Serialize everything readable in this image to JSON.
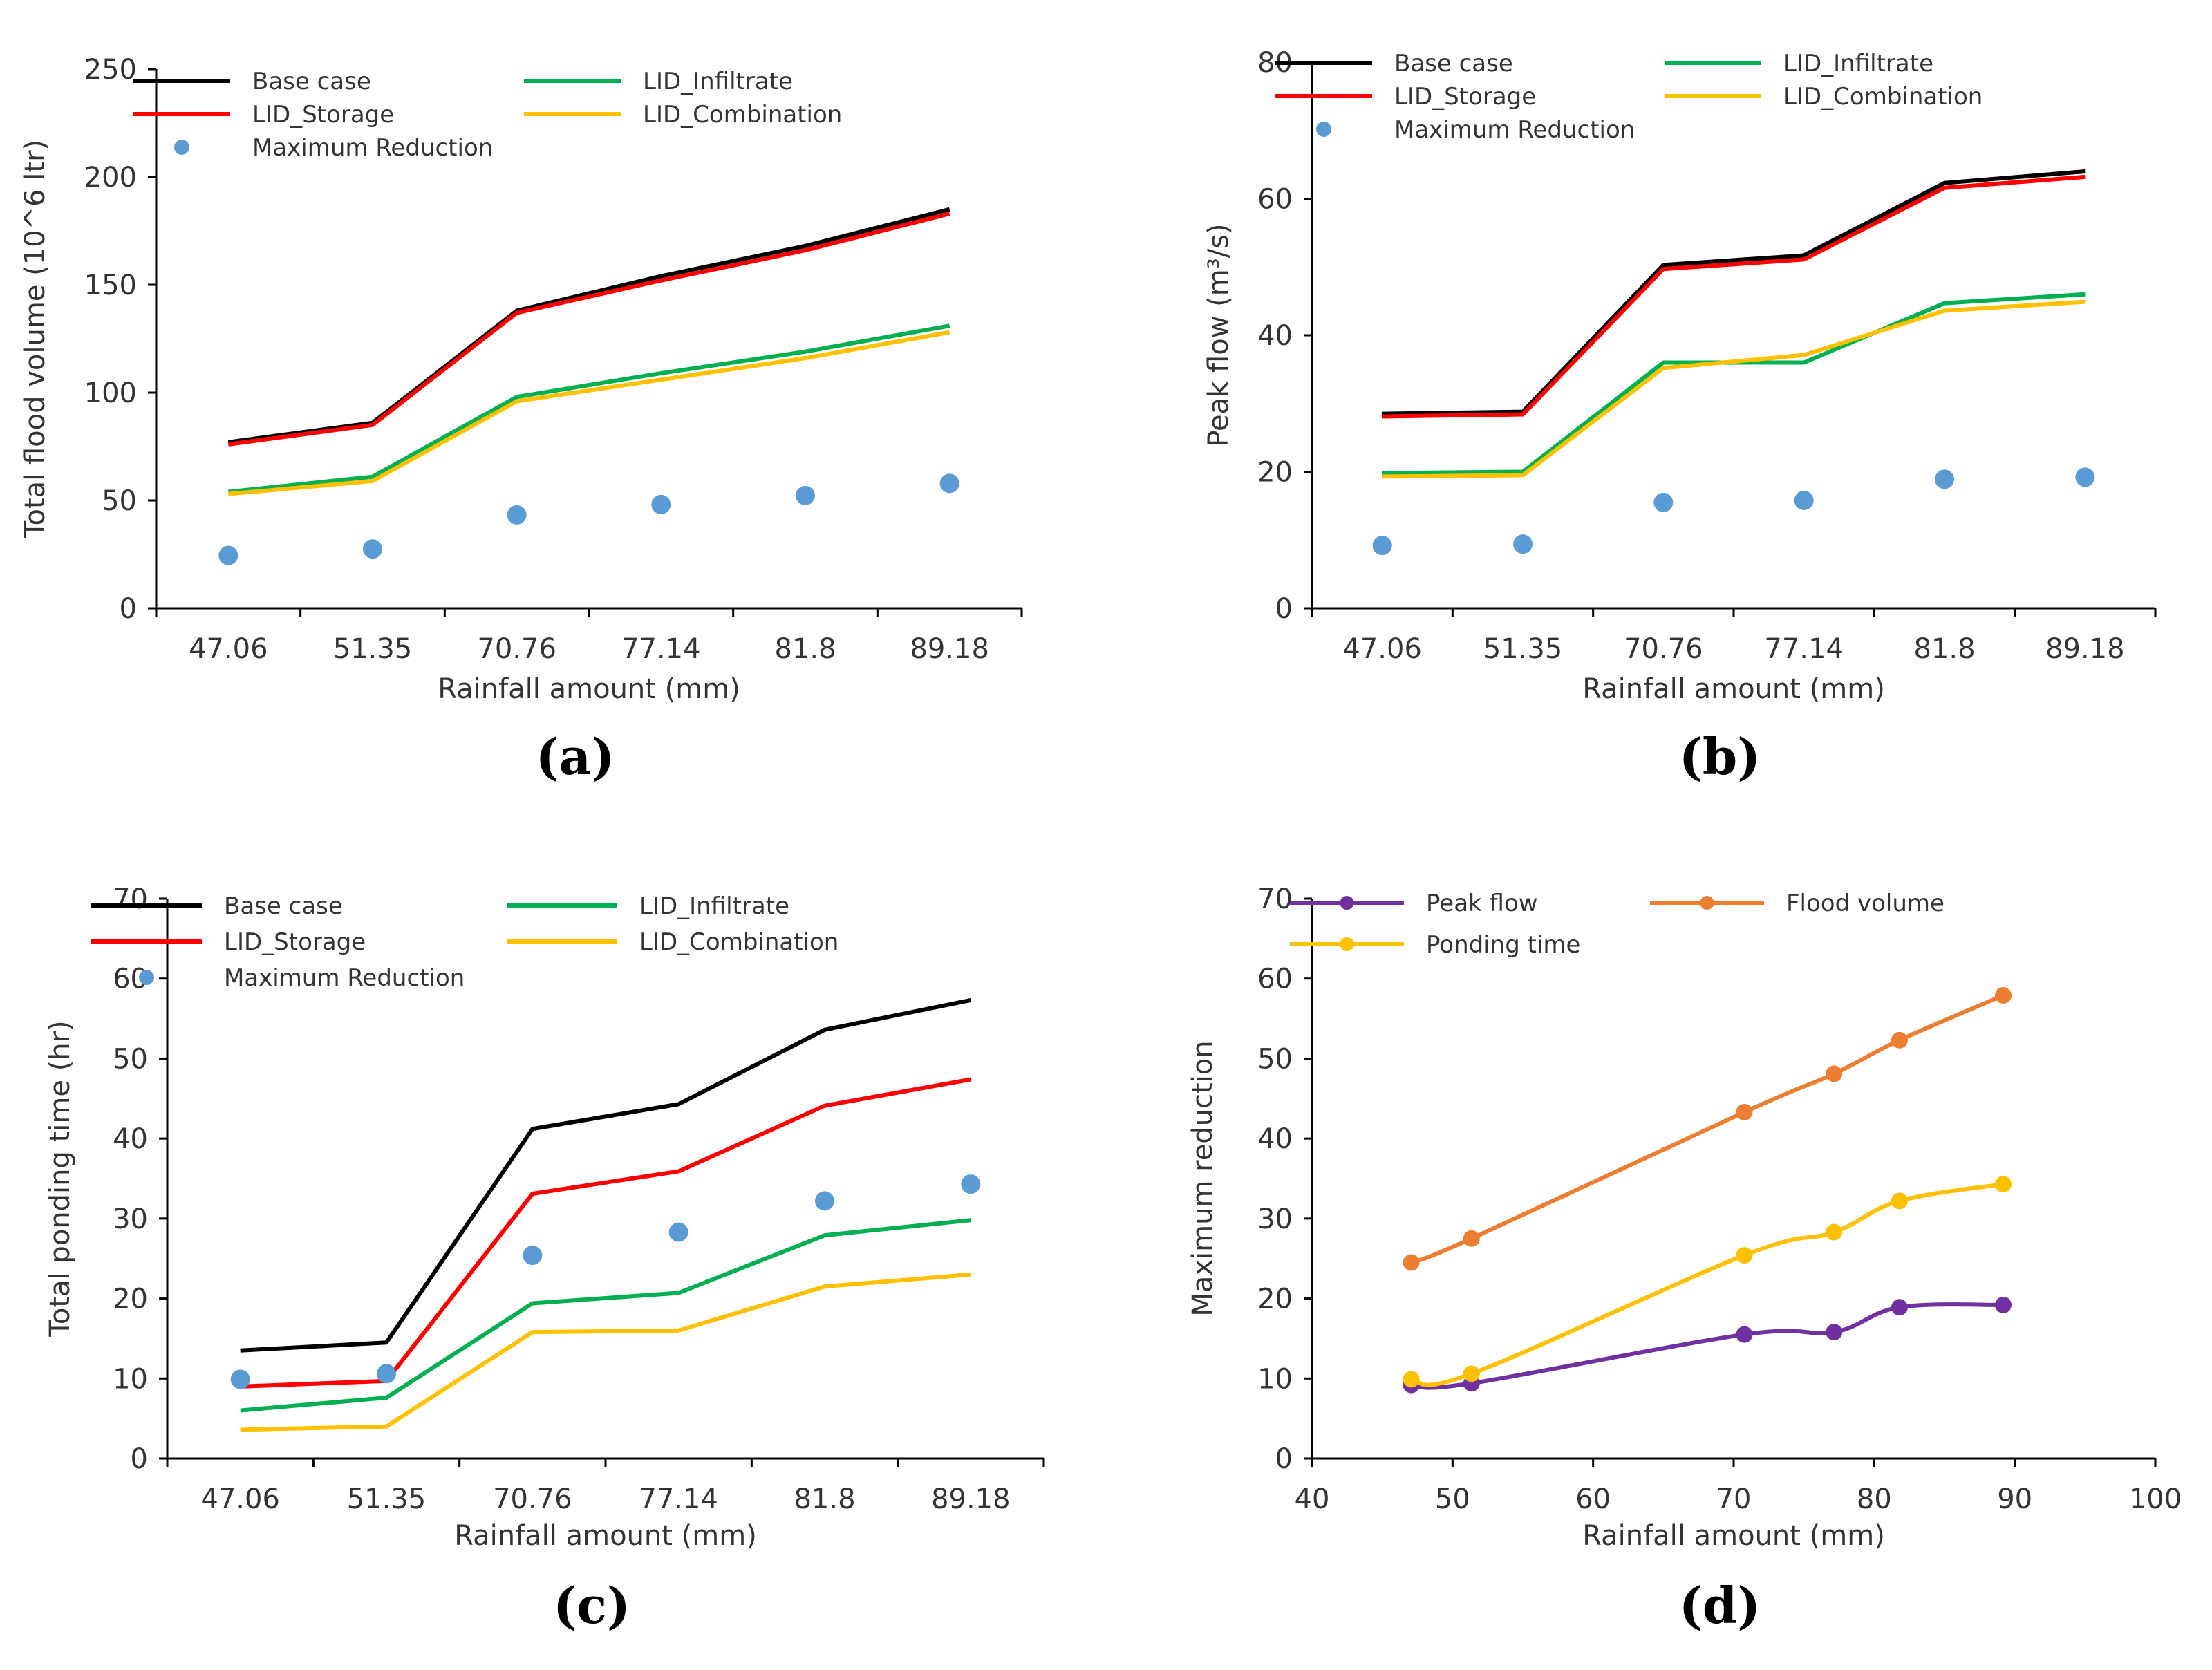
{
  "chart_data": [
    {
      "id": "a",
      "type": "line",
      "panel_label": "(a)",
      "xlabel": "Rainfall amount (mm)",
      "ylabel": "Total flood volume (10^6 ltr)",
      "categories": [
        "47.06",
        "51.35",
        "70.76",
        "77.14",
        "81.8",
        "89.18"
      ],
      "ylim": [
        0,
        250
      ],
      "yticks": [
        0,
        50,
        100,
        150,
        200,
        250
      ],
      "legend": {
        "position": "top",
        "columns": 2
      },
      "series": [
        {
          "name": "Base case",
          "style": "line",
          "color": "#000000",
          "values": [
            77,
            86,
            138,
            154,
            168,
            185
          ]
        },
        {
          "name": "LID_Infiltrate",
          "style": "line",
          "color": "#00B050",
          "values": [
            54,
            61,
            98,
            109,
            119,
            131
          ]
        },
        {
          "name": "LID_Storage",
          "style": "line",
          "color": "#FF0000",
          "values": [
            76,
            85,
            137,
            152,
            166,
            183
          ]
        },
        {
          "name": "LID_Combination",
          "style": "line",
          "color": "#FFC000",
          "values": [
            53,
            59,
            96,
            106,
            116,
            128
          ]
        },
        {
          "name": "Maximum Reduction",
          "style": "marker",
          "color": "#5B9BD5",
          "values": [
            24.5,
            27.5,
            43.3,
            48.1,
            52.3,
            57.9
          ]
        }
      ]
    },
    {
      "id": "b",
      "type": "line",
      "panel_label": "(b)",
      "xlabel": "Rainfall amount (mm)",
      "ylabel": "Peak flow (m³/s)",
      "categories": [
        "47.06",
        "51.35",
        "70.76",
        "77.14",
        "81.8",
        "89.18"
      ],
      "ylim": [
        0,
        80
      ],
      "yticks": [
        0,
        20,
        40,
        60,
        80
      ],
      "legend": {
        "position": "top",
        "columns": 2
      },
      "series": [
        {
          "name": "Base case",
          "style": "line",
          "color": "#000000",
          "values": [
            28.5,
            28.8,
            50.3,
            51.7,
            62.3,
            64
          ]
        },
        {
          "name": "LID_Infiltrate",
          "style": "line",
          "color": "#00B050",
          "values": [
            19.8,
            20,
            36,
            36,
            44.7,
            46
          ]
        },
        {
          "name": "LID_Storage",
          "style": "line",
          "color": "#FF0000",
          "values": [
            28.1,
            28.4,
            49.7,
            51.1,
            61.6,
            63.2
          ]
        },
        {
          "name": "LID_Combination",
          "style": "line",
          "color": "#FFC000",
          "values": [
            19.3,
            19.5,
            35.2,
            37.1,
            43.6,
            44.9
          ]
        },
        {
          "name": "Maximum Reduction",
          "style": "marker",
          "color": "#5B9BD5",
          "values": [
            9.2,
            9.4,
            15.5,
            15.8,
            18.9,
            19.2
          ]
        }
      ]
    },
    {
      "id": "c",
      "type": "line",
      "panel_label": "(c)",
      "xlabel": "Rainfall amount (mm)",
      "ylabel": "Total ponding time (hr)",
      "categories": [
        "47.06",
        "51.35",
        "70.76",
        "77.14",
        "81.8",
        "89.18"
      ],
      "ylim": [
        0,
        70
      ],
      "yticks": [
        0,
        10,
        20,
        30,
        40,
        50,
        60,
        70
      ],
      "legend": {
        "position": "top",
        "columns": 2
      },
      "series": [
        {
          "name": "Base case",
          "style": "line",
          "color": "#000000",
          "values": [
            13.5,
            14.5,
            41.2,
            44.3,
            53.6,
            57.3
          ]
        },
        {
          "name": "LID_Infiltrate",
          "style": "line",
          "color": "#00B050",
          "values": [
            6,
            7.6,
            19.4,
            20.7,
            27.9,
            29.8
          ]
        },
        {
          "name": "LID_Storage",
          "style": "line",
          "color": "#FF0000",
          "values": [
            9,
            9.7,
            33.1,
            35.9,
            44.1,
            47.4
          ]
        },
        {
          "name": "LID_Combination",
          "style": "line",
          "color": "#FFC000",
          "values": [
            3.6,
            4,
            15.8,
            16,
            21.5,
            23
          ]
        },
        {
          "name": "Maximum Reduction",
          "style": "marker",
          "color": "#5B9BD5",
          "values": [
            9.9,
            10.6,
            25.4,
            28.3,
            32.2,
            34.3
          ]
        }
      ]
    },
    {
      "id": "d",
      "type": "scatter",
      "panel_label": "(d)",
      "xlabel": "Rainfall amount (mm)",
      "ylabel": "Maximum reduction",
      "xlim": [
        40,
        100
      ],
      "xticks": [
        40,
        50,
        60,
        70,
        80,
        90,
        100
      ],
      "ylim": [
        0,
        70
      ],
      "yticks": [
        0,
        10,
        20,
        30,
        40,
        50,
        60,
        70
      ],
      "x": [
        47.06,
        51.35,
        70.76,
        77.14,
        81.8,
        89.18
      ],
      "legend": {
        "position": "top",
        "columns": 2
      },
      "series": [
        {
          "name": "Peak flow",
          "style": "smooth-line-marker",
          "color": "#7030A0",
          "values": [
            9.2,
            9.4,
            15.5,
            15.8,
            18.9,
            19.2
          ]
        },
        {
          "name": "Flood volume",
          "style": "smooth-line-marker",
          "color": "#ED7D31",
          "values": [
            24.5,
            27.5,
            43.3,
            48.1,
            52.3,
            57.9
          ]
        },
        {
          "name": "Ponding time",
          "style": "smooth-line-marker",
          "color": "#FFC000",
          "values": [
            9.9,
            10.6,
            25.4,
            28.3,
            32.2,
            34.3
          ]
        }
      ]
    }
  ]
}
